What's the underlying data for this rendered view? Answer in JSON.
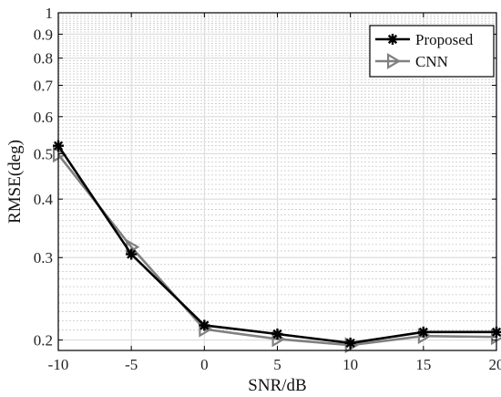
{
  "chart_data": {
    "type": "line",
    "title": "",
    "xlabel": "SNR/dB",
    "ylabel": "RMSE(deg)",
    "x": [
      -10,
      -5,
      0,
      5,
      10,
      15,
      20
    ],
    "xlim": [
      -10,
      20
    ],
    "ylim": [
      0.19,
      1
    ],
    "yscale": "log",
    "x_ticks": [
      "-10",
      "-5",
      "0",
      "5",
      "10",
      "15",
      "20"
    ],
    "y_ticks": [
      {
        "value": 0.2,
        "label": "0.2"
      },
      {
        "value": 0.3,
        "label": "0.3"
      },
      {
        "value": 0.4,
        "label": "0.4"
      },
      {
        "value": 0.5,
        "label": "0.5"
      },
      {
        "value": 0.6,
        "label": "0.6"
      },
      {
        "value": 0.7,
        "label": "0.7"
      },
      {
        "value": 0.8,
        "label": "0.8"
      },
      {
        "value": 0.9,
        "label": "0.9"
      },
      {
        "value": 1,
        "label": "1"
      }
    ],
    "grid": true,
    "legend_position": "top-right",
    "series": [
      {
        "name": "Proposed",
        "values": [
          0.52,
          0.305,
          0.215,
          0.206,
          0.197,
          0.208,
          0.208
        ],
        "color": "#000000",
        "marker": "asterisk"
      },
      {
        "name": "CNN",
        "values": [
          0.498,
          0.316,
          0.211,
          0.201,
          0.195,
          0.204,
          0.203
        ],
        "color": "#808080",
        "marker": "triangle-right"
      }
    ]
  }
}
